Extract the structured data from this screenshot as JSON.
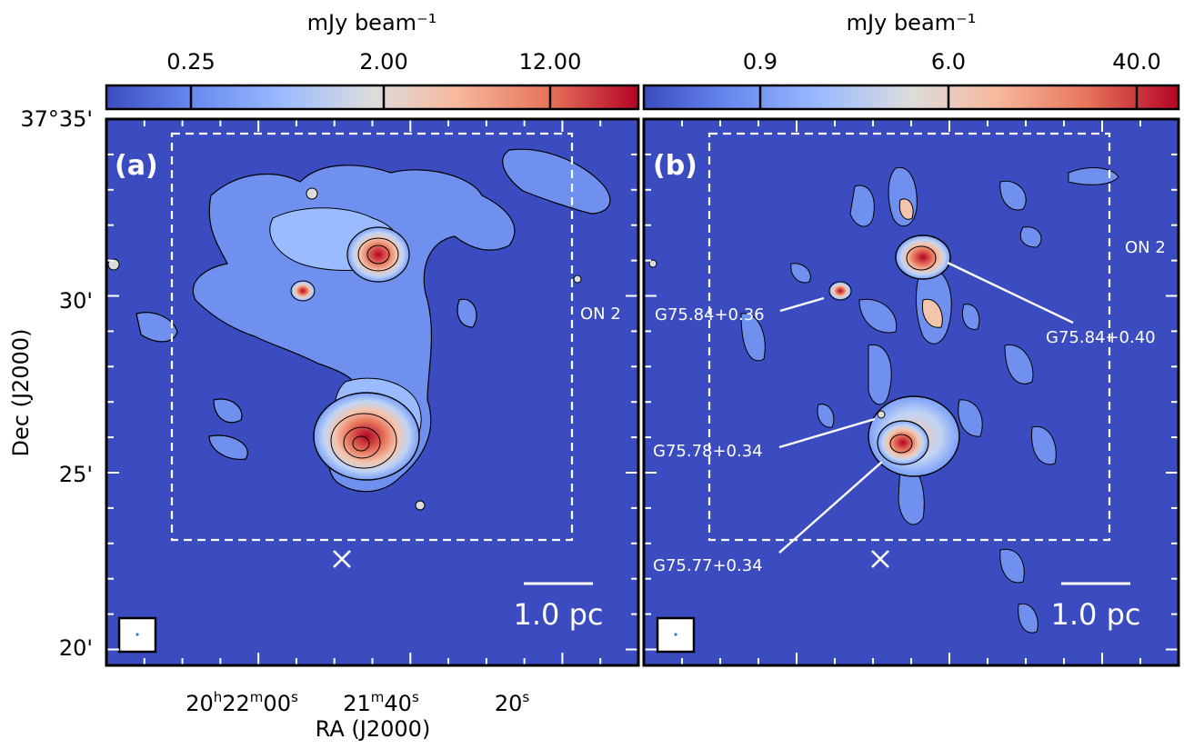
{
  "chart_data": [
    {
      "type": "heatmap",
      "panel_label": "(a)",
      "colorbar": {
        "label": "mJy beam⁻¹",
        "ticks": [
          "0.25",
          "2.00",
          "12.00"
        ],
        "tick_values": [
          0.25,
          2.0,
          12.0
        ],
        "range": [
          0.05,
          40
        ],
        "scale": "log",
        "colormap": [
          "#3b4cc0",
          "#7b9ff9",
          "#c0d4f5",
          "#dddcdc",
          "#f4c5ad",
          "#ee8468",
          "#b40426"
        ]
      },
      "xlabel": "RA (J2000)",
      "ylabel": "Dec (J2000)",
      "x_ticks": [
        "20h22m00s",
        "21m40s",
        "20s"
      ],
      "y_ticks": [
        "37°35'",
        "30'",
        "25'",
        "20'"
      ],
      "y_tick_values_arcmin": [
        35,
        30,
        25,
        20
      ],
      "ylim_arcmin": [
        19.55,
        35.0
      ],
      "annotations": [
        {
          "text": "ON 2"
        }
      ],
      "scalebar": "1.0 pc",
      "sources": [
        {
          "ra_arcsec_offset": 0,
          "dec_arcmin": 31.15,
          "peak_mJy": 40
        },
        {
          "ra_arcsec_offset": 0,
          "dec_arcmin": 25.85,
          "peak_mJy": 40
        },
        {
          "ra_arcsec_offset": 0,
          "dec_arcmin": 30.2,
          "peak_mJy": 15
        }
      ],
      "grid": false
    },
    {
      "type": "heatmap",
      "panel_label": "(b)",
      "colorbar": {
        "label": "mJy beam⁻¹",
        "ticks": [
          "0.9",
          "6.0",
          "40.0"
        ],
        "tick_values": [
          0.9,
          6.0,
          40.0
        ],
        "range": [
          0.3,
          60
        ],
        "scale": "log",
        "colormap": [
          "#3b4cc0",
          "#7b9ff9",
          "#c0d4f5",
          "#dddcdc",
          "#f4c5ad",
          "#ee8468",
          "#b40426"
        ]
      },
      "annotations": [
        {
          "text": "ON 2"
        },
        {
          "text": "G75.84+0.36"
        },
        {
          "text": "G75.84+0.40"
        },
        {
          "text": "G75.78+0.34"
        },
        {
          "text": "G75.77+0.34"
        }
      ],
      "scalebar": "1.0 pc",
      "grid": false
    }
  ]
}
